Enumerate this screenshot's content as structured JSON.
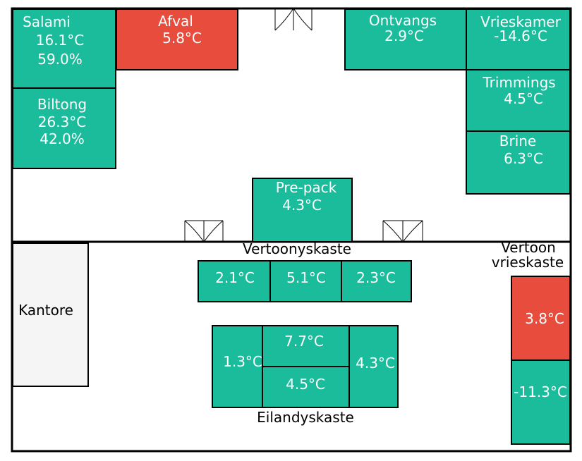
{
  "colors": {
    "ok": "#1abc9c",
    "alarm": "#e74c3c",
    "office": "#f5f5f5",
    "wall": "#000000",
    "label_dark": "#000000",
    "label_light": "#ffffff"
  },
  "rooms": {
    "salami": {
      "name": "Salami",
      "temp": "16.1°C",
      "humidity": "59.0%",
      "status": "ok"
    },
    "afval": {
      "name": "Afval",
      "temp": "5.8°C",
      "status": "alarm"
    },
    "ontvangs": {
      "name": "Ontvangs",
      "temp": "2.9°C",
      "status": "ok"
    },
    "vrieskamer": {
      "name": "Vrieskamer",
      "temp": "-14.6°C",
      "status": "ok"
    },
    "biltong": {
      "name": "Biltong",
      "temp": "26.3°C",
      "humidity": "42.0%",
      "status": "ok"
    },
    "trimmings": {
      "name": "Trimmings",
      "temp": "4.5°C",
      "status": "ok"
    },
    "brine": {
      "name": "Brine",
      "temp": "6.3°C",
      "status": "ok"
    },
    "prepack": {
      "name": "Pre-pack",
      "temp": "4.3°C",
      "status": "ok"
    },
    "kantore": {
      "name": "Kantore"
    }
  },
  "display_cases": {
    "title": "Vertoonyskaste",
    "units": [
      {
        "temp": "2.1°C",
        "status": "ok"
      },
      {
        "temp": "5.1°C",
        "status": "ok"
      },
      {
        "temp": "2.3°C",
        "status": "ok"
      }
    ]
  },
  "island_cases": {
    "title": "Eilandyskaste",
    "left": {
      "temp": "1.3°C",
      "status": "ok"
    },
    "center_top": {
      "temp": "7.7°C",
      "status": "ok"
    },
    "center_bottom": {
      "temp": "4.5°C",
      "status": "ok"
    },
    "right": {
      "temp": "4.3°C",
      "status": "ok"
    }
  },
  "display_freezers": {
    "title_line1": "Vertoon",
    "title_line2": "vrieskaste",
    "top": {
      "temp": "3.8°C",
      "status": "alarm"
    },
    "bottom": {
      "temp": "-11.3°C",
      "status": "ok"
    }
  }
}
